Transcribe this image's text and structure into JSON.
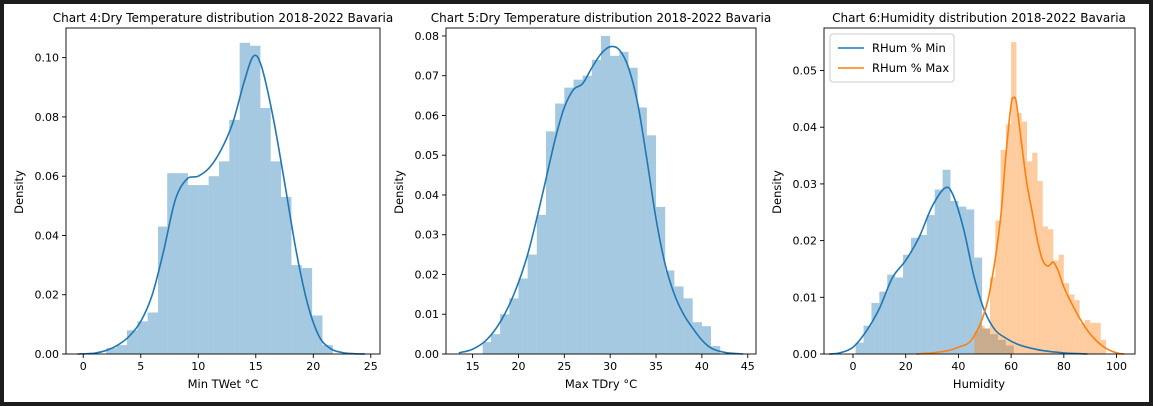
{
  "chart_data": [
    {
      "type": "histogram-kde",
      "title": "Chart 4:Dry Temperature distribution 2018-2022 Bavaria",
      "xlabel": "Min TWet °C",
      "ylabel": "Density",
      "xlim": [
        -1.5,
        25.8
      ],
      "ylim": [
        0,
        0.11
      ],
      "xticks": [
        0,
        5,
        10,
        15,
        20,
        25
      ],
      "yticks": [
        0.0,
        0.02,
        0.04,
        0.06,
        0.08,
        0.1
      ],
      "ytick_labels": [
        "0.00",
        "0.02",
        "0.04",
        "0.06",
        "0.08",
        "0.10"
      ],
      "grid": false,
      "series": [
        {
          "color": "#1f77b4",
          "bins": [
            {
              "x0": 2.0,
              "x1": 2.9,
              "y": 0.002
            },
            {
              "x0": 2.9,
              "x1": 3.8,
              "y": 0.003
            },
            {
              "x0": 3.8,
              "x1": 4.7,
              "y": 0.008
            },
            {
              "x0": 4.7,
              "x1": 5.6,
              "y": 0.011
            },
            {
              "x0": 5.6,
              "x1": 6.5,
              "y": 0.014
            },
            {
              "x0": 6.5,
              "x1": 7.3,
              "y": 0.043
            },
            {
              "x0": 7.3,
              "x1": 8.2,
              "y": 0.061
            },
            {
              "x0": 8.2,
              "x1": 9.1,
              "y": 0.061
            },
            {
              "x0": 9.1,
              "x1": 10.0,
              "y": 0.057
            },
            {
              "x0": 10.0,
              "x1": 10.9,
              "y": 0.057
            },
            {
              "x0": 10.9,
              "x1": 11.8,
              "y": 0.06
            },
            {
              "x0": 11.8,
              "x1": 12.7,
              "y": 0.065
            },
            {
              "x0": 12.7,
              "x1": 13.6,
              "y": 0.079
            },
            {
              "x0": 13.6,
              "x1": 14.5,
              "y": 0.105
            },
            {
              "x0": 14.5,
              "x1": 15.4,
              "y": 0.104
            },
            {
              "x0": 15.4,
              "x1": 16.3,
              "y": 0.083
            },
            {
              "x0": 16.3,
              "x1": 17.2,
              "y": 0.065
            },
            {
              "x0": 17.2,
              "x1": 18.1,
              "y": 0.053
            },
            {
              "x0": 18.1,
              "x1": 19.0,
              "y": 0.03
            },
            {
              "x0": 19.0,
              "x1": 19.9,
              "y": 0.029
            },
            {
              "x0": 19.9,
              "x1": 20.8,
              "y": 0.013
            },
            {
              "x0": 20.8,
              "x1": 21.7,
              "y": 0.003
            }
          ],
          "kde": {
            "x": [
              -0.5,
              1,
              2,
              3,
              4,
              5,
              6,
              7,
              8,
              9,
              10,
              11,
              12,
              13,
              14,
              14.8,
              15.5,
              16.5,
              17.5,
              18.5,
              19.5,
              20.5,
              21.5,
              22.5,
              23.5,
              24.5
            ],
            "y": [
              0.0,
              0.0003,
              0.0012,
              0.003,
              0.006,
              0.011,
              0.02,
              0.035,
              0.052,
              0.059,
              0.06,
              0.063,
              0.069,
              0.078,
              0.092,
              0.1005,
              0.097,
              0.08,
              0.058,
              0.035,
              0.017,
              0.006,
              0.0018,
              0.0005,
              0.0001,
              0.0
            ]
          }
        }
      ]
    },
    {
      "type": "histogram-kde",
      "title": "Chart 5:Dry Temperature distribution 2018-2022 Bavaria",
      "xlabel": "Max TDry °C",
      "ylabel": "Density",
      "xlim": [
        12.1,
        45.9
      ],
      "ylim": [
        0,
        0.082
      ],
      "xticks": [
        15,
        20,
        25,
        30,
        35,
        40,
        45
      ],
      "yticks": [
        0.0,
        0.01,
        0.02,
        0.03,
        0.04,
        0.05,
        0.06,
        0.07,
        0.08
      ],
      "ytick_labels": [
        "0.00",
        "0.01",
        "0.02",
        "0.03",
        "0.04",
        "0.05",
        "0.06",
        "0.07",
        "0.08"
      ],
      "grid": false,
      "series": [
        {
          "color": "#1f77b4",
          "bins": [
            {
              "x0": 16.1,
              "x1": 17.0,
              "y": 0.003
            },
            {
              "x0": 17.0,
              "x1": 18.0,
              "y": 0.005
            },
            {
              "x0": 18.0,
              "x1": 19.0,
              "y": 0.01
            },
            {
              "x0": 19.0,
              "x1": 20.0,
              "y": 0.014
            },
            {
              "x0": 20.0,
              "x1": 21.0,
              "y": 0.019
            },
            {
              "x0": 21.0,
              "x1": 22.0,
              "y": 0.025
            },
            {
              "x0": 22.0,
              "x1": 23.0,
              "y": 0.035
            },
            {
              "x0": 23.0,
              "x1": 24.0,
              "y": 0.056
            },
            {
              "x0": 24.0,
              "x1": 25.0,
              "y": 0.063
            },
            {
              "x0": 25.0,
              "x1": 26.0,
              "y": 0.067
            },
            {
              "x0": 26.0,
              "x1": 27.0,
              "y": 0.069
            },
            {
              "x0": 27.0,
              "x1": 28.0,
              "y": 0.07
            },
            {
              "x0": 28.0,
              "x1": 29.0,
              "y": 0.074
            },
            {
              "x0": 29.0,
              "x1": 30.0,
              "y": 0.08
            },
            {
              "x0": 30.0,
              "x1": 31.0,
              "y": 0.075
            },
            {
              "x0": 31.0,
              "x1": 32.0,
              "y": 0.076
            },
            {
              "x0": 32.0,
              "x1": 33.0,
              "y": 0.072
            },
            {
              "x0": 33.0,
              "x1": 34.0,
              "y": 0.062
            },
            {
              "x0": 34.0,
              "x1": 35.0,
              "y": 0.055
            },
            {
              "x0": 35.0,
              "x1": 36.0,
              "y": 0.037
            },
            {
              "x0": 36.0,
              "x1": 37.0,
              "y": 0.021
            },
            {
              "x0": 37.0,
              "x1": 38.0,
              "y": 0.017
            },
            {
              "x0": 38.0,
              "x1": 39.0,
              "y": 0.014
            },
            {
              "x0": 39.0,
              "x1": 40.0,
              "y": 0.008
            },
            {
              "x0": 40.0,
              "x1": 41.0,
              "y": 0.007
            },
            {
              "x0": 41.0,
              "x1": 42.0,
              "y": 0.002
            }
          ],
          "kde": {
            "x": [
              13.5,
              15,
              16.5,
              18,
              19.5,
              21,
              22.5,
              24,
              25,
              26,
              27,
              28,
              29,
              30,
              31,
              32,
              33,
              34,
              35,
              36,
              37,
              38,
              39,
              40,
              41,
              42.5,
              44.5
            ],
            "y": [
              0.0003,
              0.0012,
              0.0035,
              0.008,
              0.015,
              0.025,
              0.039,
              0.054,
              0.062,
              0.0665,
              0.068,
              0.072,
              0.0755,
              0.0773,
              0.0765,
              0.072,
              0.063,
              0.049,
              0.034,
              0.0225,
              0.015,
              0.01,
              0.0065,
              0.0035,
              0.0015,
              0.0004,
              0.0
            ]
          }
        }
      ]
    },
    {
      "type": "histogram-kde",
      "title": "Chart 6:Humidity distribution 2018-2022 Bavaria",
      "xlabel": "Humidity",
      "ylabel": "Density",
      "xlim": [
        -11,
        107
      ],
      "ylim": [
        0,
        0.0575
      ],
      "xticks": [
        0,
        20,
        40,
        60,
        80,
        100
      ],
      "yticks": [
        0.0,
        0.01,
        0.02,
        0.03,
        0.04,
        0.05
      ],
      "ytick_labels": [
        "0.00",
        "0.01",
        "0.02",
        "0.03",
        "0.04",
        "0.05"
      ],
      "grid": false,
      "legend_position": "top-left",
      "series": [
        {
          "name": "RHum % Min",
          "color": "#1f77b4",
          "bins": [
            {
              "x0": 1,
              "x1": 4,
              "y": 0.002
            },
            {
              "x0": 4,
              "x1": 7,
              "y": 0.005
            },
            {
              "x0": 7,
              "x1": 10,
              "y": 0.009
            },
            {
              "x0": 10,
              "x1": 13,
              "y": 0.011
            },
            {
              "x0": 13,
              "x1": 16,
              "y": 0.014
            },
            {
              "x0": 16,
              "x1": 19,
              "y": 0.0135
            },
            {
              "x0": 19,
              "x1": 22,
              "y": 0.0175
            },
            {
              "x0": 22,
              "x1": 25,
              "y": 0.0205
            },
            {
              "x0": 25,
              "x1": 28,
              "y": 0.021
            },
            {
              "x0": 28,
              "x1": 31,
              "y": 0.0245
            },
            {
              "x0": 31,
              "x1": 34,
              "y": 0.029
            },
            {
              "x0": 34,
              "x1": 37,
              "y": 0.0325
            },
            {
              "x0": 37,
              "x1": 40,
              "y": 0.027
            },
            {
              "x0": 40,
              "x1": 43,
              "y": 0.026
            },
            {
              "x0": 43,
              "x1": 46,
              "y": 0.0255
            },
            {
              "x0": 46,
              "x1": 49,
              "y": 0.017
            },
            {
              "x0": 49,
              "x1": 52,
              "y": 0.0045
            },
            {
              "x0": 52,
              "x1": 55,
              "y": 0.0035
            },
            {
              "x0": 55,
              "x1": 58,
              "y": 0.0025
            },
            {
              "x0": 58,
              "x1": 61,
              "y": 0.0015
            }
          ],
          "kde": {
            "x": [
              -9,
              -5,
              0,
              5,
              10,
              15,
              20,
              25,
              30,
              35,
              38,
              42,
              46,
              50,
              54,
              58,
              62,
              66,
              72,
              80,
              89
            ],
            "y": [
              0.0,
              0.0002,
              0.0012,
              0.004,
              0.008,
              0.0135,
              0.0165,
              0.0205,
              0.026,
              0.0293,
              0.028,
              0.022,
              0.0135,
              0.0075,
              0.0042,
              0.0028,
              0.0018,
              0.0012,
              0.0006,
              0.0002,
              0.0
            ]
          }
        },
        {
          "name": "RHum % Max",
          "color": "#ff7f0e",
          "bins": [
            {
              "x0": 46,
              "x1": 48,
              "y": 0.004
            },
            {
              "x0": 48,
              "x1": 50,
              "y": 0.005
            },
            {
              "x0": 50,
              "x1": 52,
              "y": 0.0045
            },
            {
              "x0": 52,
              "x1": 54,
              "y": 0.0135
            },
            {
              "x0": 54,
              "x1": 56,
              "y": 0.0235
            },
            {
              "x0": 56,
              "x1": 58,
              "y": 0.036
            },
            {
              "x0": 58,
              "x1": 60,
              "y": 0.0405
            },
            {
              "x0": 60,
              "x1": 62,
              "y": 0.055
            },
            {
              "x0": 62,
              "x1": 64,
              "y": 0.0425
            },
            {
              "x0": 64,
              "x1": 66,
              "y": 0.041
            },
            {
              "x0": 66,
              "x1": 68,
              "y": 0.034
            },
            {
              "x0": 68,
              "x1": 70,
              "y": 0.0355
            },
            {
              "x0": 70,
              "x1": 72,
              "y": 0.0305
            },
            {
              "x0": 72,
              "x1": 74,
              "y": 0.0225
            },
            {
              "x0": 74,
              "x1": 76,
              "y": 0.022
            },
            {
              "x0": 76,
              "x1": 78,
              "y": 0.0165
            },
            {
              "x0": 78,
              "x1": 80,
              "y": 0.0175
            },
            {
              "x0": 80,
              "x1": 82,
              "y": 0.0125
            },
            {
              "x0": 82,
              "x1": 84,
              "y": 0.0105
            },
            {
              "x0": 84,
              "x1": 86,
              "y": 0.0095
            },
            {
              "x0": 86,
              "x1": 88,
              "y": 0.0055
            },
            {
              "x0": 88,
              "x1": 90,
              "y": 0.006
            },
            {
              "x0": 90,
              "x1": 92,
              "y": 0.0055
            },
            {
              "x0": 92,
              "x1": 94,
              "y": 0.0055
            },
            {
              "x0": 94,
              "x1": 96,
              "y": 0.0025
            }
          ],
          "kde": {
            "x": [
              24,
              30,
              36,
              40,
              45,
              50,
              53,
              56,
              58,
              60,
              61,
              62,
              64,
              66,
              68,
              70,
              72,
              74,
              76,
              78,
              80,
              84,
              88,
              92,
              96,
              100,
              103
            ],
            "y": [
              0.0,
              0.0002,
              0.0006,
              0.0012,
              0.0025,
              0.0075,
              0.014,
              0.024,
              0.035,
              0.044,
              0.0452,
              0.0443,
              0.037,
              0.03,
              0.025,
              0.02,
              0.0165,
              0.0155,
              0.0162,
              0.0145,
              0.0118,
              0.008,
              0.0048,
              0.0025,
              0.001,
              0.0002,
              0.0
            ]
          }
        }
      ]
    }
  ]
}
